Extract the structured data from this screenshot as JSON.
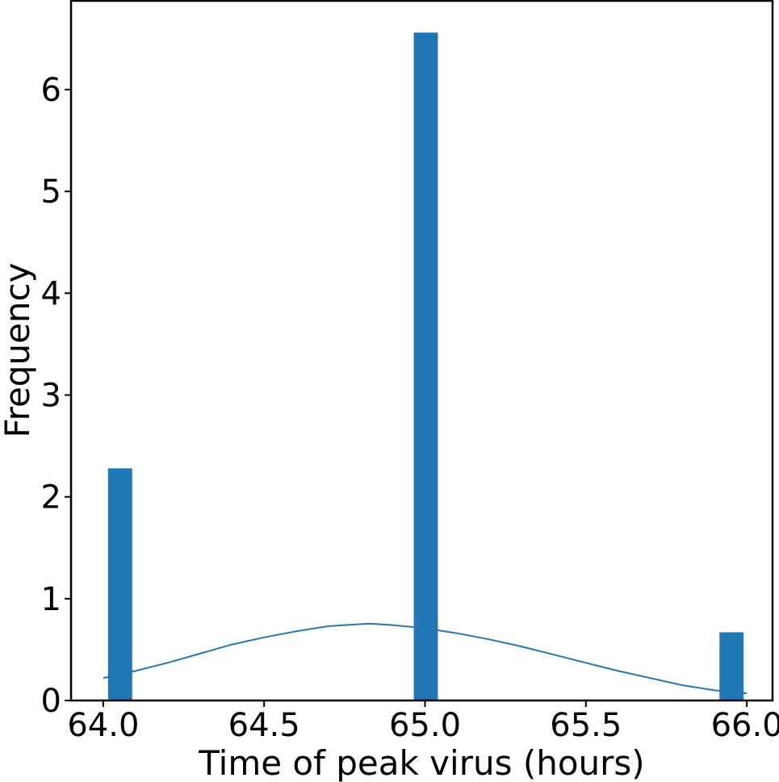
{
  "chart_data": {
    "type": "bar",
    "xlabel": "Time of peak virus (hours)",
    "ylabel": "Frequency",
    "xlim": [
      63.9,
      66.08
    ],
    "ylim": [
      0,
      6.88
    ],
    "xticks": [
      64.0,
      64.5,
      65.0,
      65.5,
      66.0
    ],
    "xtick_labels": [
      "64.0",
      "64.5",
      "65.0",
      "65.5",
      "66.0"
    ],
    "yticks": [
      0,
      1,
      2,
      3,
      4,
      5,
      6
    ],
    "ytick_labels": [
      "0",
      "1",
      "2",
      "3",
      "4",
      "5",
      "6"
    ],
    "bins": [
      {
        "x0": 64.015,
        "x1": 64.09,
        "value": 2.28
      },
      {
        "x0": 64.965,
        "x1": 65.04,
        "value": 6.56
      },
      {
        "x0": 65.915,
        "x1": 65.99,
        "value": 0.67
      }
    ],
    "kde": {
      "x": [
        64.0,
        64.1,
        64.2,
        64.3,
        64.4,
        64.5,
        64.6,
        64.7,
        64.8,
        64.83,
        64.9,
        65.0,
        65.1,
        65.2,
        65.3,
        65.4,
        65.5,
        65.6,
        65.7,
        65.8,
        65.9,
        66.0
      ],
      "y": [
        0.22,
        0.29,
        0.37,
        0.46,
        0.55,
        0.62,
        0.68,
        0.73,
        0.75,
        0.755,
        0.74,
        0.71,
        0.66,
        0.6,
        0.53,
        0.45,
        0.37,
        0.29,
        0.22,
        0.15,
        0.1,
        0.07
      ]
    },
    "bar_color": "#1f77b4",
    "line_color": "#1f77b4",
    "grid": false,
    "legend": "none"
  }
}
